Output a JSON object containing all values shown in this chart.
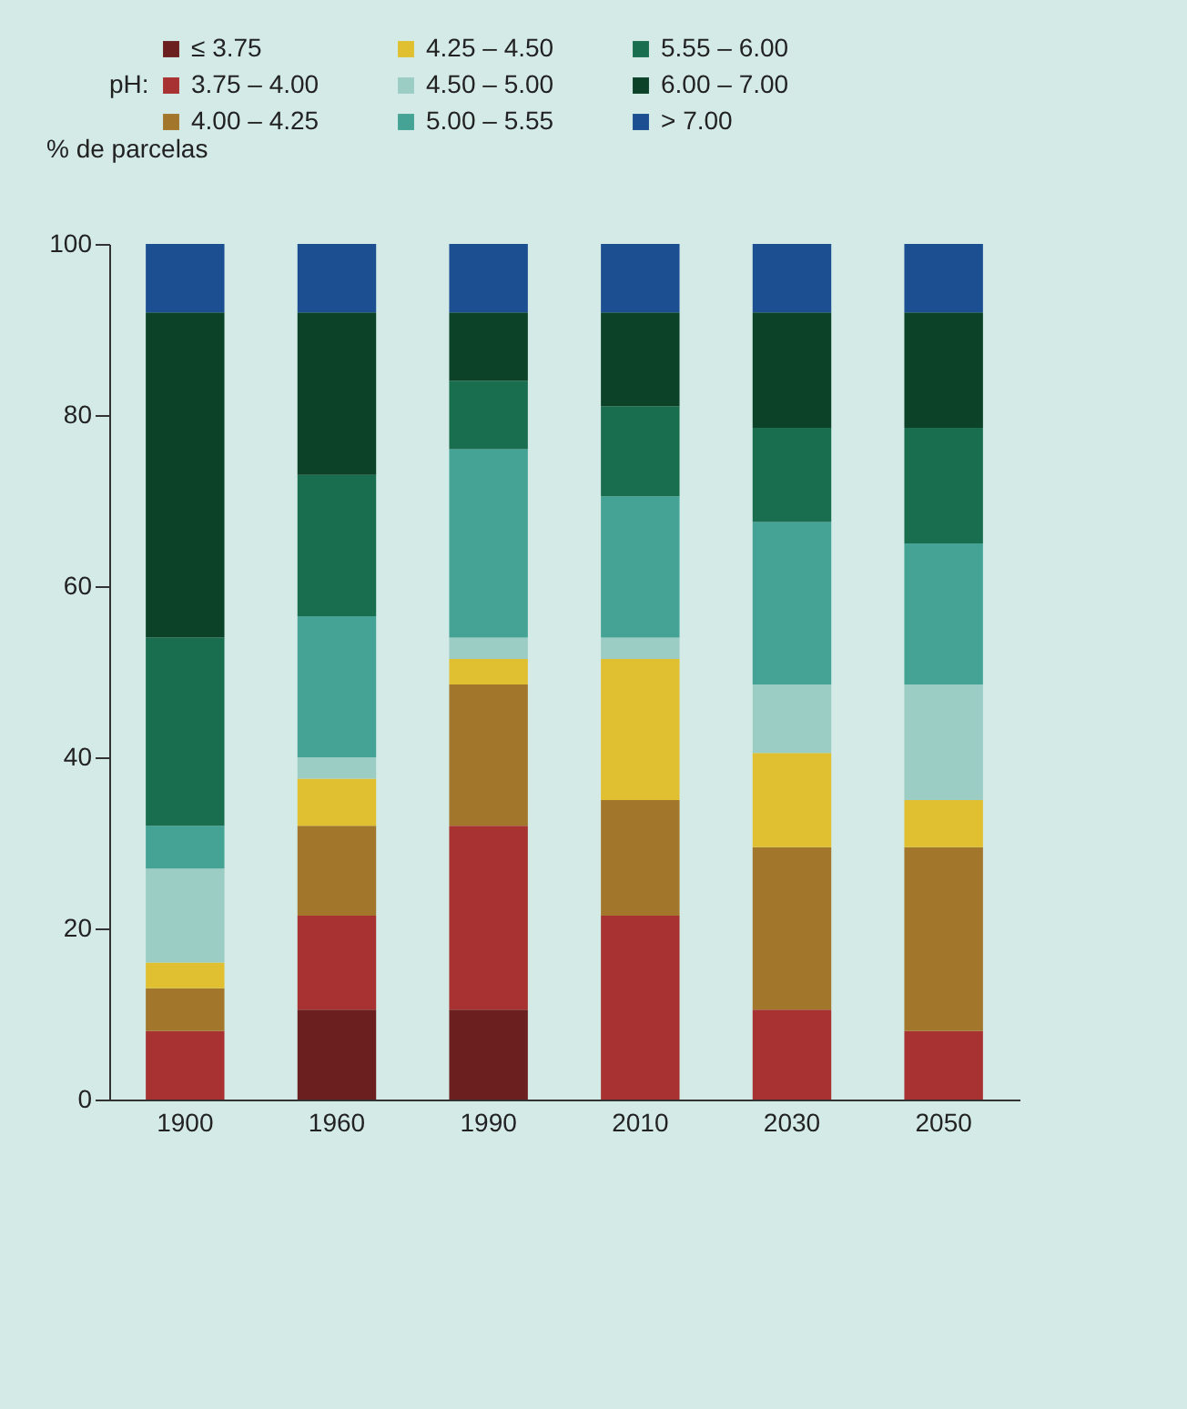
{
  "chart_data": {
    "type": "bar",
    "stacked": true,
    "legend_title": "pH:",
    "ylabel": "% de parcelas",
    "categories": [
      "1900",
      "1960",
      "1990",
      "2010",
      "2030",
      "2050"
    ],
    "series": [
      {
        "name": "≤ 3.75",
        "color": "#6b1f1f",
        "values": [
          0,
          10.5,
          10.5,
          0,
          0,
          0
        ]
      },
      {
        "name": "3.75 – 4.00",
        "color": "#a83232",
        "values": [
          8,
          11,
          21.5,
          21.5,
          10.5,
          8
        ]
      },
      {
        "name": "4.00 – 4.25",
        "color": "#a3772b",
        "values": [
          5,
          10.5,
          16.5,
          13.5,
          19,
          21.5
        ]
      },
      {
        "name": "4.25 – 4.50",
        "color": "#e0c030",
        "values": [
          3,
          5.5,
          3,
          16.5,
          11,
          5.5
        ]
      },
      {
        "name": "4.50 – 5.00",
        "color": "#9ccdc5",
        "values": [
          11,
          2.5,
          2.5,
          2.5,
          8,
          13.5
        ]
      },
      {
        "name": "5.00 – 5.55",
        "color": "#45a395",
        "values": [
          5,
          16.5,
          22,
          16.5,
          19,
          16.5
        ]
      },
      {
        "name": "5.55 – 6.00",
        "color": "#1a6e50",
        "values": [
          22,
          16.5,
          8,
          10.5,
          11,
          13.5
        ]
      },
      {
        "name": "6.00 – 7.00",
        "color": "#0b4228",
        "values": [
          38,
          19,
          8,
          11,
          13.5,
          13.5
        ]
      },
      {
        "name": "> 7.00",
        "color": "#1c4f91",
        "values": [
          8,
          8,
          8,
          8,
          8,
          8
        ]
      }
    ],
    "ylim": [
      0,
      100
    ],
    "yticks": [
      0,
      20,
      40,
      60,
      80,
      100
    ],
    "grid": false,
    "legend": "top"
  }
}
